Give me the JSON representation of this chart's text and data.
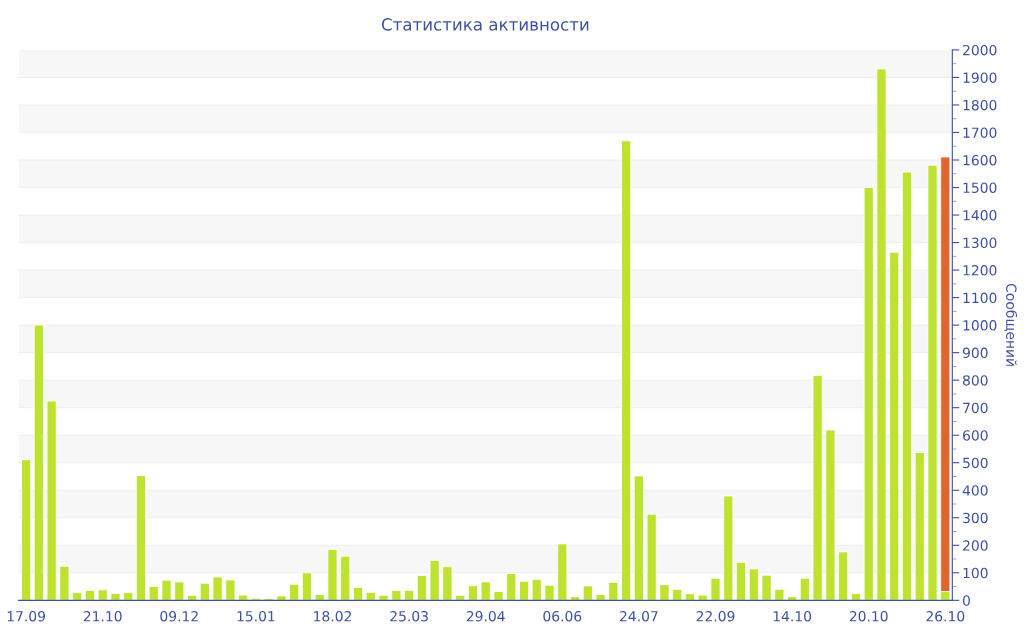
{
  "chart_data": {
    "type": "bar",
    "title": "Статистика активности",
    "ylabel": "Сообщений",
    "categories": [
      "17.09",
      null,
      null,
      null,
      null,
      null,
      "21.10",
      null,
      null,
      null,
      null,
      null,
      "09.12",
      null,
      null,
      null,
      null,
      null,
      "15.01",
      null,
      null,
      null,
      null,
      null,
      "18.02",
      null,
      null,
      null,
      null,
      null,
      "25.03",
      null,
      null,
      null,
      null,
      null,
      "29.04",
      null,
      null,
      null,
      null,
      null,
      "06.06",
      null,
      null,
      null,
      null,
      null,
      "24.07",
      null,
      null,
      null,
      null,
      null,
      "22.09",
      null,
      null,
      null,
      null,
      null,
      "14.10",
      null,
      null,
      null,
      null,
      null,
      "20.10",
      null,
      null,
      null,
      null,
      null,
      "26.10"
    ],
    "stacked": true,
    "series": [
      {
        "color": "#bde22f",
        "values": [
          511,
          1000,
          724,
          124,
          28,
          36,
          38,
          25,
          28,
          453,
          50,
          73,
          67,
          18,
          62,
          85,
          74,
          19,
          7,
          7,
          16,
          58,
          100,
          21,
          185,
          160,
          47,
          29,
          18,
          36,
          36,
          90,
          145,
          122,
          18,
          53,
          67,
          32,
          97,
          69,
          76,
          55,
          205,
          13,
          52,
          21,
          65,
          1670,
          452,
          313,
          57,
          40,
          24,
          19,
          80,
          379,
          138,
          114,
          91,
          40,
          13,
          80,
          817,
          619,
          176,
          25,
          1500,
          1931,
          1265,
          1556,
          537,
          1581,
          32
        ]
      },
      {
        "color": "#e0662f",
        "values": [
          null,
          null,
          null,
          null,
          null,
          null,
          null,
          null,
          null,
          null,
          null,
          null,
          null,
          null,
          null,
          null,
          null,
          null,
          null,
          null,
          null,
          null,
          null,
          null,
          null,
          null,
          null,
          null,
          null,
          null,
          null,
          null,
          null,
          null,
          null,
          null,
          null,
          null,
          null,
          null,
          null,
          null,
          null,
          null,
          null,
          null,
          null,
          null,
          null,
          null,
          null,
          null,
          null,
          null,
          null,
          null,
          null,
          null,
          null,
          null,
          null,
          null,
          null,
          null,
          null,
          null,
          null,
          null,
          null,
          null,
          null,
          null,
          1579
        ]
      }
    ],
    "ylim": [
      0,
      2000
    ],
    "yticks": [
      0,
      100,
      200,
      300,
      400,
      500,
      600,
      700,
      800,
      900,
      1000,
      1100,
      1200,
      1300,
      1400,
      1500,
      1600,
      1700,
      1800,
      1900,
      2000
    ],
    "grid": "y",
    "legend": false
  }
}
